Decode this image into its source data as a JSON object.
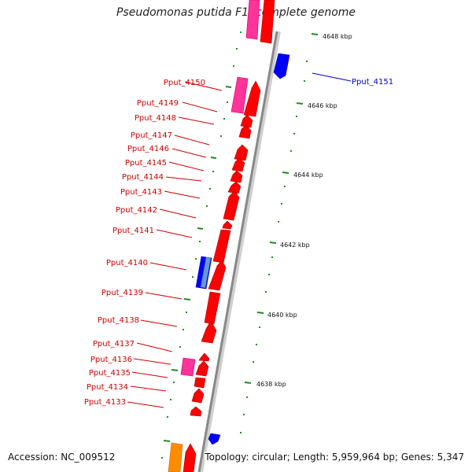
{
  "title": "Pseudomonas putida F1, complete genome",
  "footer": {
    "accession": "Accession: NC_009512",
    "stats": "Topology: circular; Length: 5,959,964 bp; Genes: 5,347"
  },
  "colors": {
    "gene_forward": "#ff0000",
    "gene_reverse": "#0000ff",
    "gene_pink": "#ff3399",
    "gene_orange": "#ff8c00",
    "tick": "#228b22",
    "label": "#cc0000",
    "label_blue": "#0000cc",
    "backbone": "#888888"
  },
  "scale_labels": [
    "4648 kbp",
    "4646 kbp",
    "4644 kbp",
    "4642 kbp",
    "4640 kbp",
    "4638 kbp"
  ],
  "gene_labels_left": [
    "Pput_4150",
    "Pput_4149",
    "Pput_4148",
    "Pput_4147",
    "Pput_4146",
    "Pput_4145",
    "Pput_4144",
    "Pput_4143",
    "Pput_4142",
    "Pput_4141",
    "Pput_4140",
    "Pput_4139",
    "Pput_4138",
    "Pput_4137",
    "Pput_4136",
    "Pput_4135",
    "Pput_4134",
    "Pput_4133"
  ],
  "gene_labels_right": [
    "Pput_4151"
  ]
}
